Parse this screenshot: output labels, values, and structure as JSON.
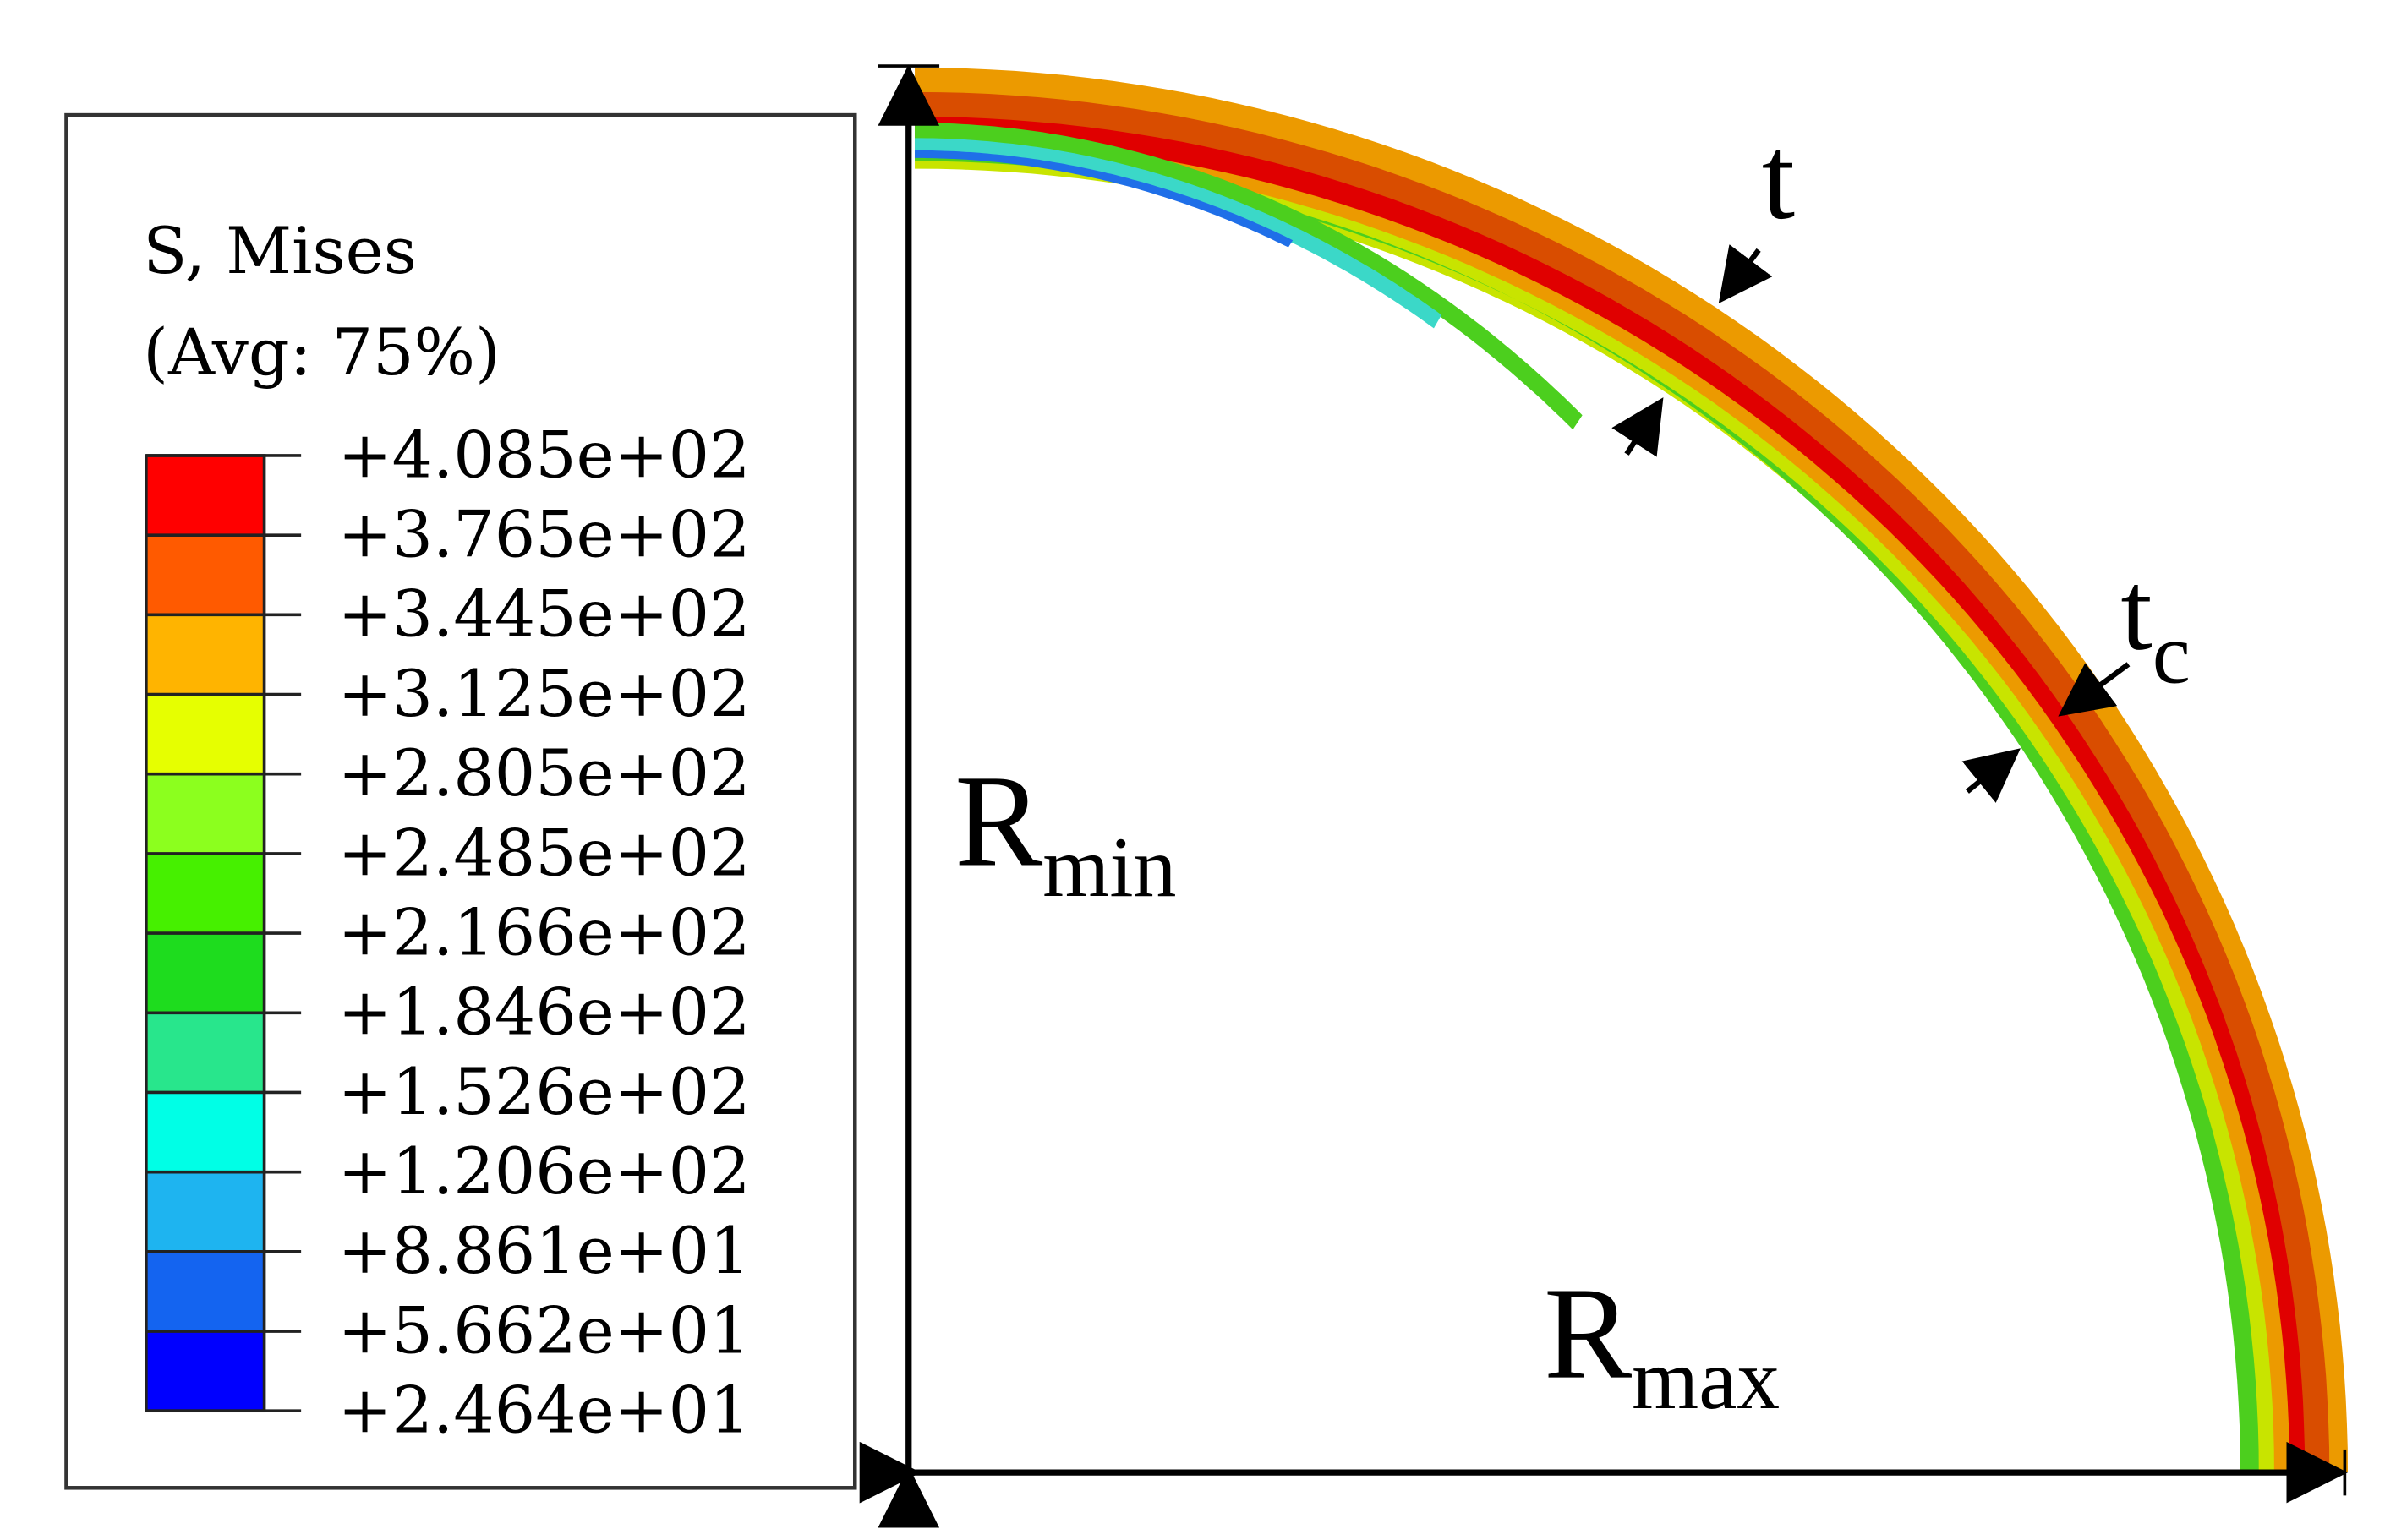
{
  "legend": {
    "title": "S, Mises",
    "subtitle": "(Avg: 75%)",
    "values": [
      "+4.085e+02",
      "+3.765e+02",
      "+3.445e+02",
      "+3.125e+02",
      "+2.805e+02",
      "+2.485e+02",
      "+2.166e+02",
      "+1.846e+02",
      "+1.526e+02",
      "+1.206e+02",
      "+8.861e+01",
      "+5.662e+01",
      "+2.464e+01"
    ],
    "colors": [
      "#ff0000",
      "#ff5a00",
      "#ffb400",
      "#e6ff00",
      "#8cff1e",
      "#46f000",
      "#1edc1e",
      "#28e68c",
      "#00ffe6",
      "#1eb4f0",
      "#1464f0",
      "#0000ff"
    ]
  },
  "labels": {
    "t": "t",
    "tc_main": "t",
    "tc_sub": "c",
    "rmin_main": "R",
    "rmin_sub": "min",
    "rmax_main": "R",
    "rmax_sub": "max"
  },
  "band_colors": {
    "outer": "#d94d00",
    "red": "#e00000",
    "orange": "#ec9a00",
    "yellow": "#c8e400",
    "green": "#4ccf1e",
    "cyan": "#3bd8c8",
    "blue": "#1f6fe8"
  }
}
